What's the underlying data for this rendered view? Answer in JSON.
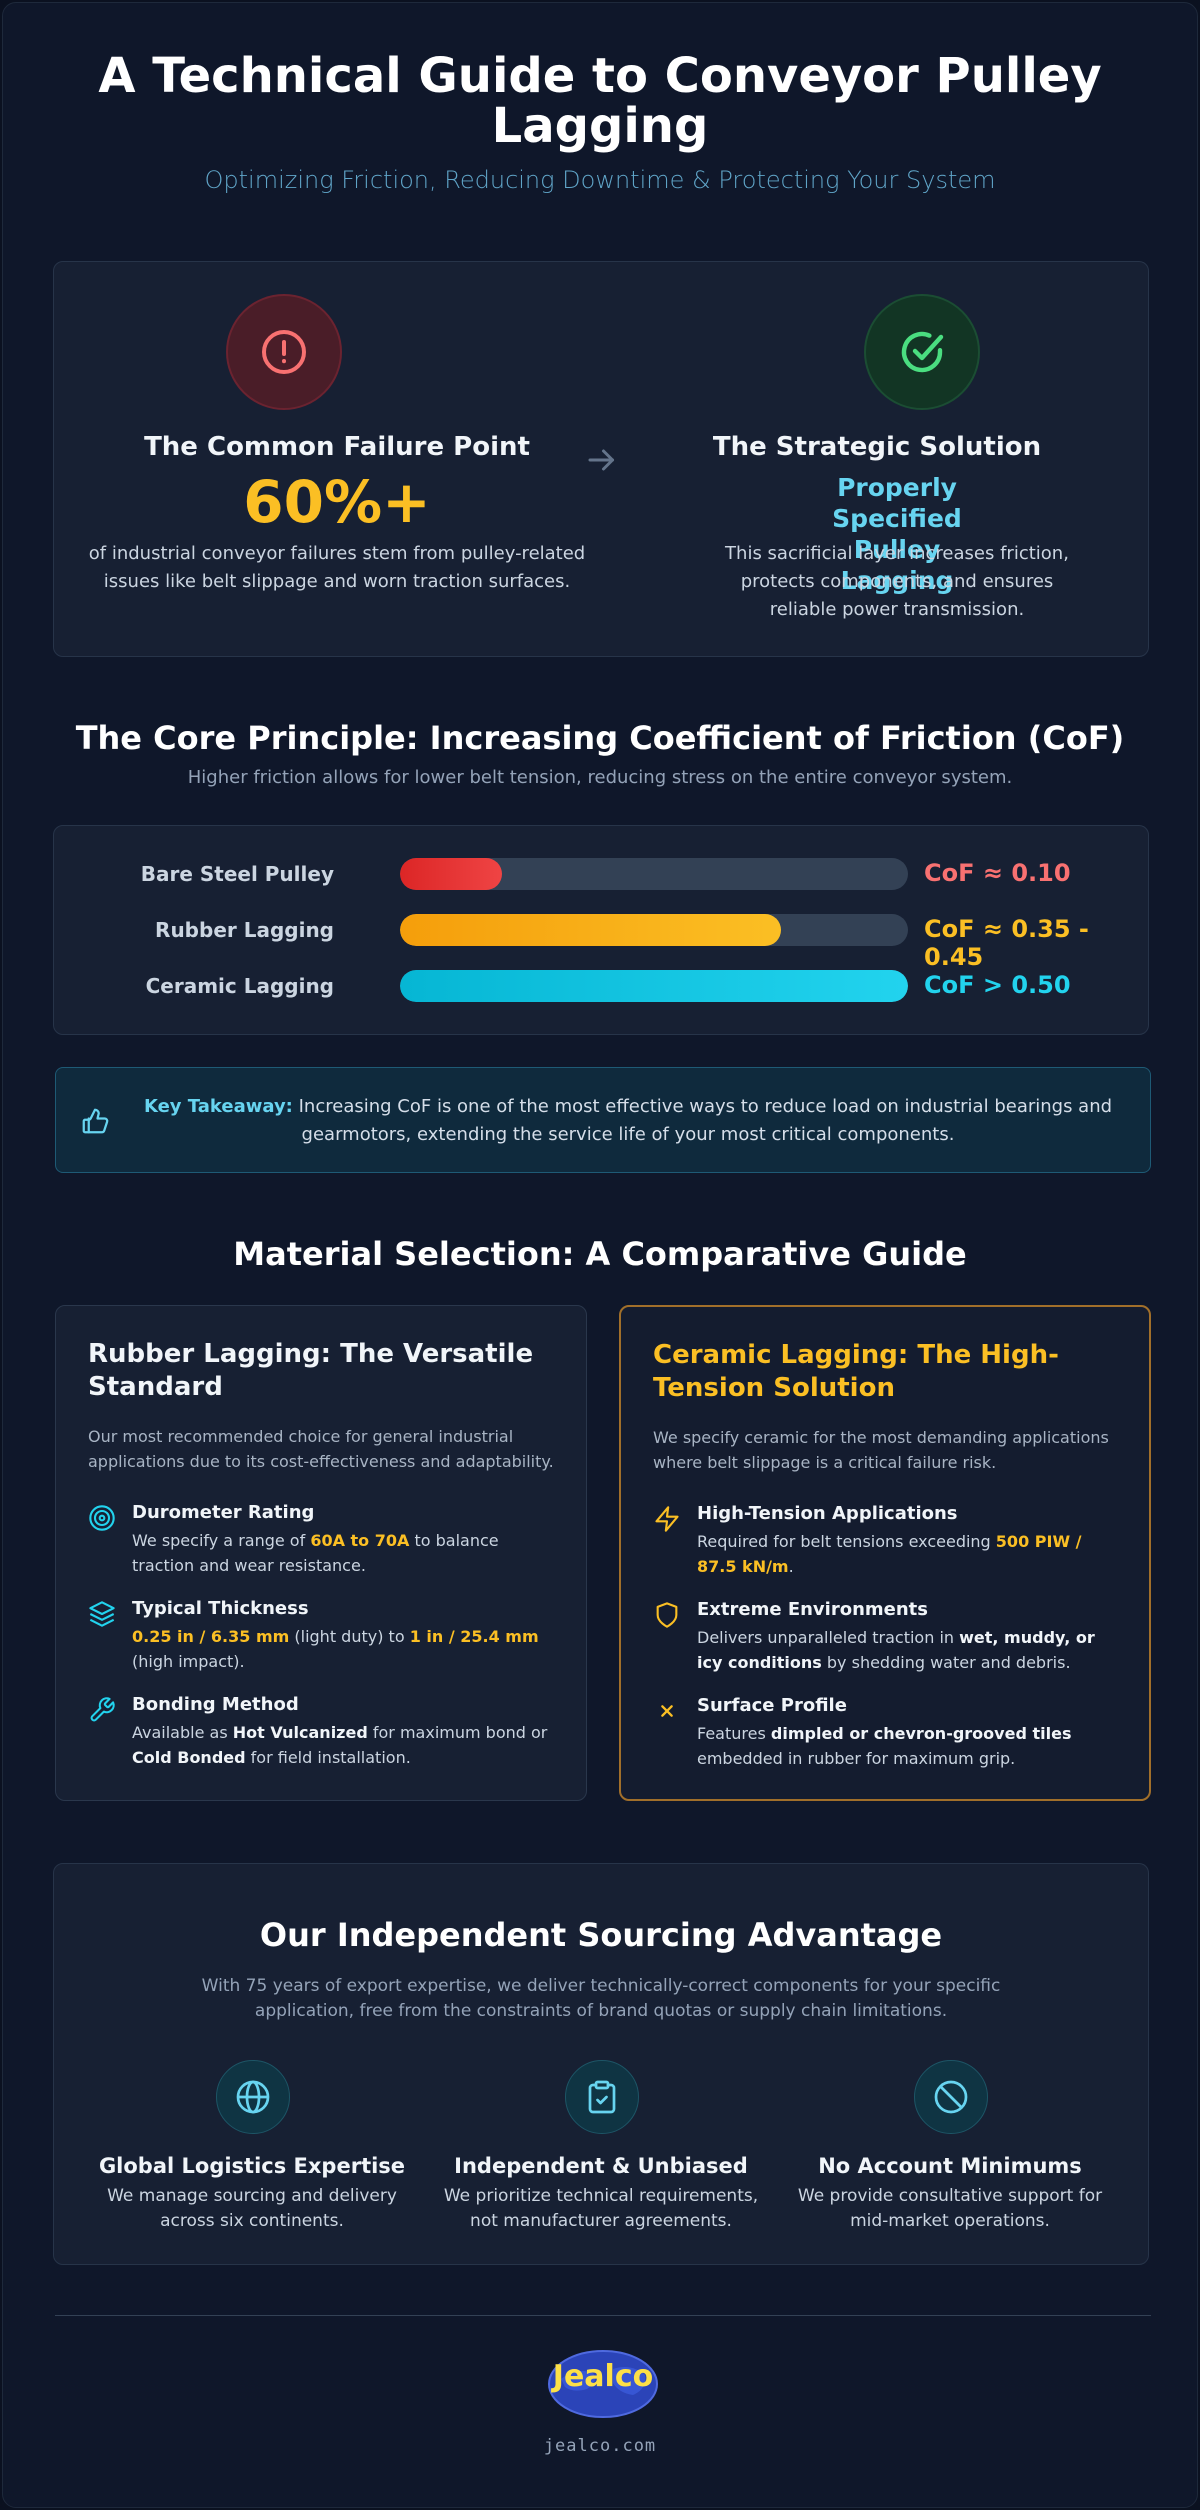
{
  "header": {
    "title": "A Technical Guide to Conveyor Pulley Lagging",
    "subtitle": "Optimizing Friction, Reducing Downtime & Protecting Your System"
  },
  "problem_solution": {
    "problem": {
      "icon": "alert-circle-icon",
      "title": "The Common Failure Point",
      "stat": "60%+",
      "text": "of industrial conveyor failures stem from pulley-related issues like belt slippage and worn traction surfaces."
    },
    "arrow_icon": "arrow-right-icon",
    "solution": {
      "icon": "check-circle-icon",
      "title": "The Strategic Solution",
      "subtitle": "Properly Specified Pulley Lagging",
      "text": "This sacrificial layer increases friction, protects components, and ensures reliable power transmission."
    }
  },
  "core_principle": {
    "title": "The Core Principle: Increasing Coefficient of Friction (CoF)",
    "subtitle": "Higher friction allows for lower belt tension, reducing stress on the entire conveyor system.",
    "rows": [
      {
        "label": "Bare Steel Pulley",
        "value_text": "CoF ≈ 0.10",
        "fill_fraction": 0.2,
        "color": "#f87171"
      },
      {
        "label": "Rubber Lagging",
        "value_text": "CoF ≈ 0.35 - 0.45",
        "fill_fraction": 0.75,
        "color": "#fbbf24"
      },
      {
        "label": "Ceramic Lagging",
        "value_text": "CoF > 0.50",
        "fill_fraction": 1.0,
        "color": "#22d3ee"
      }
    ]
  },
  "takeaway": {
    "icon": "thumbs-up-icon",
    "label": "Key Takeaway:",
    "text": "Increasing CoF is one of the most effective ways to reduce load on industrial bearings and gearmotors, extending the service life of your most critical components."
  },
  "materials": {
    "title": "Material Selection: A Comparative Guide",
    "rubber": {
      "title": "Rubber Lagging: The Versatile Standard",
      "intro": "Our most recommended choice for general industrial applications due to its cost-effectiveness and adaptability.",
      "features": [
        {
          "icon": "target-icon",
          "title": "Durometer Rating",
          "t1": "We specify a range of ",
          "h1": "60A to 70A",
          "t2": " to balance traction and wear resistance."
        },
        {
          "icon": "layers-icon",
          "title": "Typical Thickness",
          "h1": "0.25 in / 6.35 mm",
          "t1": " (light duty) to ",
          "h2": "1 in / 25.4 mm",
          "t2": " (high impact)."
        },
        {
          "icon": "wrench-icon",
          "title": "Bonding Method",
          "t1": "Available as ",
          "s1": "Hot Vulcanized",
          "t2": " for maximum bond or ",
          "s2": "Cold Bonded",
          "t3": " for field installation."
        }
      ]
    },
    "ceramic": {
      "title": "Ceramic Lagging: The High-Tension Solution",
      "intro": "We specify ceramic for the most demanding applications where belt slippage is a critical failure risk.",
      "features": [
        {
          "icon": "lightning-icon",
          "title": "High-Tension Applications",
          "t1": "Required for belt tensions exceeding ",
          "h1": "500 PIW / 87.5 kN/m",
          "t2": "."
        },
        {
          "icon": "shield-icon",
          "title": "Extreme Environments",
          "t1": "Delivers unparalleled traction in ",
          "s1": "wet, muddy, or icy conditions",
          "t2": " by shedding water and debris."
        },
        {
          "icon": "x-icon",
          "title": "Surface Profile",
          "t1": "Features ",
          "s1": "dimpled or chevron-grooved tiles",
          "t2": " embedded in rubber for maximum grip."
        }
      ]
    }
  },
  "advantage": {
    "title": "Our Independent Sourcing Advantage",
    "intro": "With 75 years of export expertise, we deliver technically-correct components for your specific application, free from the constraints of brand quotas or supply chain limitations.",
    "items": [
      {
        "icon": "globe-icon",
        "title": "Global Logistics Expertise",
        "text": "We manage sourcing and delivery across six continents."
      },
      {
        "icon": "clipboard-check-icon",
        "title": "Independent & Unbiased",
        "text": "We prioritize technical requirements, not manufacturer agreements."
      },
      {
        "icon": "ban-icon",
        "title": "No Account Minimums",
        "text": "We provide consultative support for mid-market operations."
      }
    ]
  },
  "footer": {
    "logo_text": "Jealco",
    "website": "jealco.com"
  },
  "colors": {
    "background": "#0f172a",
    "accent_cyan": "#67d4f0",
    "accent_amber": "#fbbf24",
    "alert_red": "#f87171",
    "success_green": "#4ade80"
  }
}
